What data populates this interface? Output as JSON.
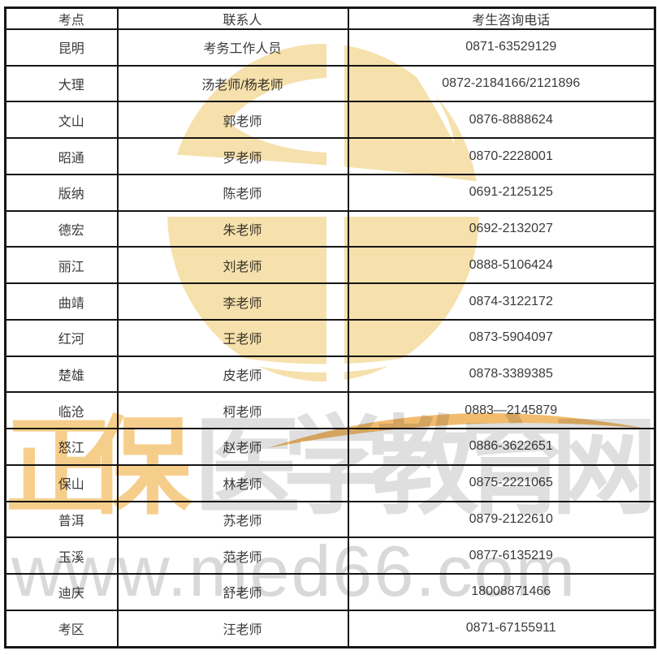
{
  "page": {
    "background": "#ffffff"
  },
  "table": {
    "headers": [
      "考点",
      "联系人",
      "考生咨询电话"
    ],
    "rows": [
      [
        "昆明",
        "考务工作人员",
        "0871-63529129"
      ],
      [
        "大理",
        "汤老师/杨老师",
        "0872-2184166/2121896"
      ],
      [
        "文山",
        "郭老师",
        "0876-8888624"
      ],
      [
        "昭通",
        "罗老师",
        "0870-2228001"
      ],
      [
        "版纳",
        "陈老师",
        "0691-2125125"
      ],
      [
        "德宏",
        "朱老师",
        "0692-2132027"
      ],
      [
        "丽江",
        "刘老师",
        "0888-5106424"
      ],
      [
        "曲靖",
        "李老师",
        "0874-3122172"
      ],
      [
        "红河",
        "王老师",
        "0873-5904097"
      ],
      [
        "楚雄",
        "皮老师",
        "0878-3389385"
      ],
      [
        "临沧",
        "柯老师",
        "0883—2145879"
      ],
      [
        "怒江",
        "赵老师",
        "0886-3622651"
      ],
      [
        "保山",
        "林老师",
        "0875-2221065"
      ],
      [
        "普洱",
        "苏老师",
        "0879-2122610"
      ],
      [
        "玉溪",
        "范老师",
        "0877-6135219"
      ],
      [
        "迪庆",
        "舒老师",
        "18008871466"
      ],
      [
        "考区",
        "汪老师",
        "0871-67155911"
      ]
    ]
  },
  "watermark": {
    "brand_gold": "正保",
    "brand_gray": "医学教育网",
    "url": "www.med66.com",
    "logo_icon": "zhengbao-med66-circle-logo",
    "colors": {
      "logo_fill": "#F6E0AC",
      "brand_gold": "#F6CE8B",
      "brand_gray": "#DFDFDF",
      "url_gray": "#D9D9D9",
      "swoosh": "#F2BC6E",
      "table_border": "#161616",
      "table_text": "#3a3a3a"
    }
  }
}
